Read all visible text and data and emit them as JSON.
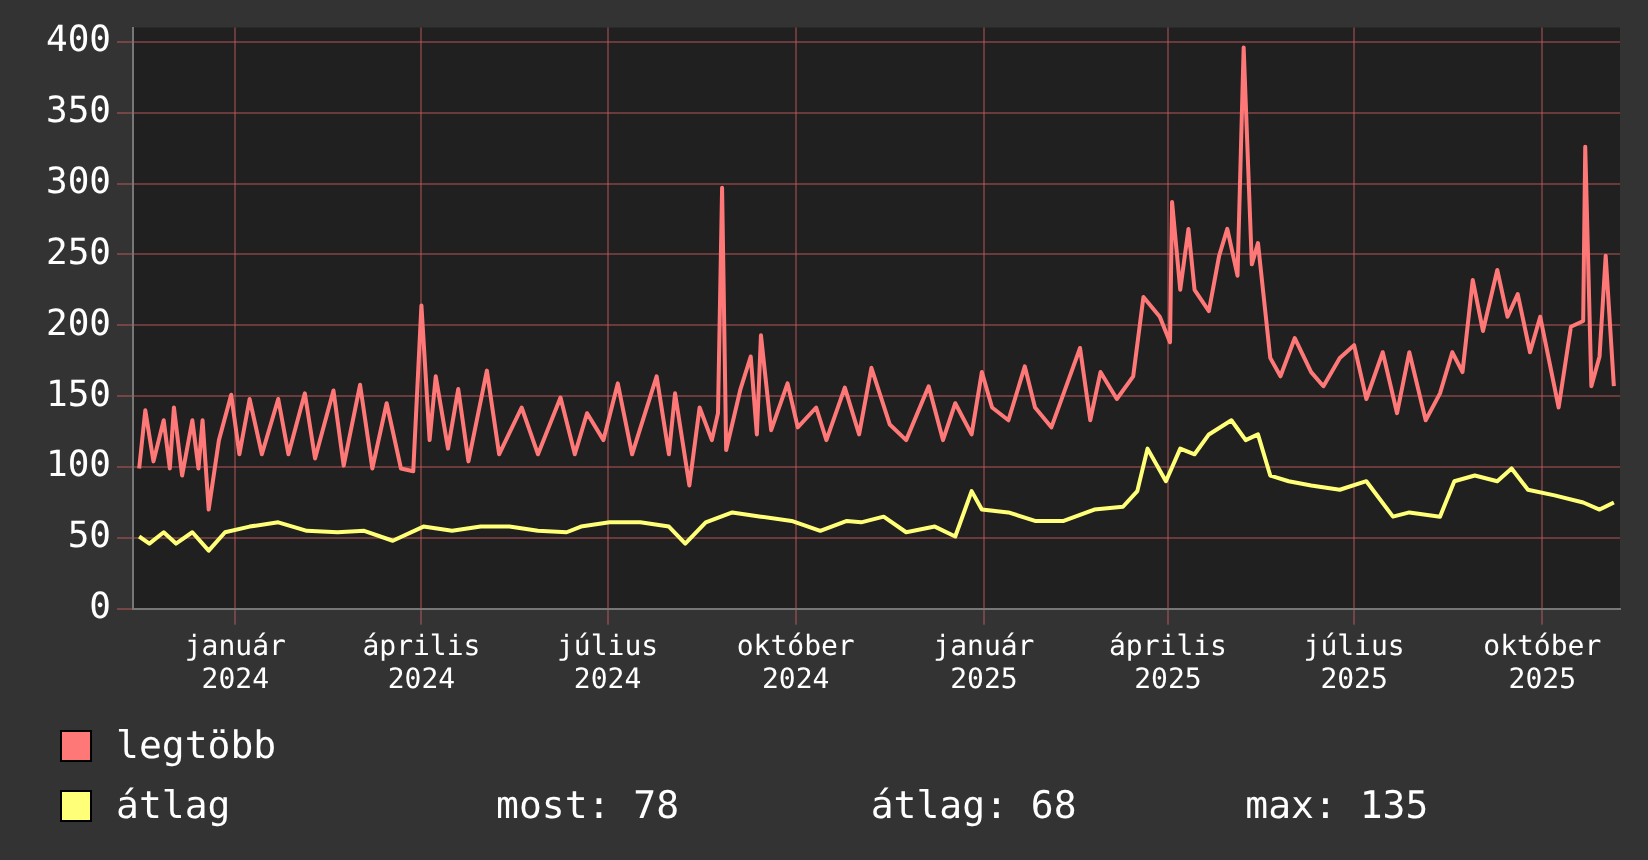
{
  "chart_data": {
    "type": "line",
    "xlim": [
      "2023-11-12",
      "2025-11-08"
    ],
    "xticks": [
      {
        "value": "2024-01-01",
        "label": "január 2024"
      },
      {
        "value": "2024-04-01",
        "label": "április 2024"
      },
      {
        "value": "2024-07-01",
        "label": "július 2024"
      },
      {
        "value": "2024-10-01",
        "label": "október 2024"
      },
      {
        "value": "2025-01-01",
        "label": "január 2025"
      },
      {
        "value": "2025-04-01",
        "label": "április 2025"
      },
      {
        "value": "2025-07-01",
        "label": "július 2025"
      },
      {
        "value": "2025-10-01",
        "label": "október 2025"
      }
    ],
    "ylim": [
      0,
      410
    ],
    "yticks": [
      0,
      50,
      100,
      150,
      200,
      250,
      300,
      350,
      400
    ],
    "grid": true,
    "legend": "bottom left",
    "marker": "none",
    "line_style": "solid",
    "annotations": [
      "most: 78",
      "átlag: 68",
      "max: 135"
    ],
    "series": [
      {
        "name": "legtöbb",
        "color": "#ff7878",
        "x": [
          "2023-11-15",
          "2023-11-18",
          "2023-11-22",
          "2023-11-27",
          "2023-11-30",
          "2023-12-02",
          "2023-12-06",
          "2023-12-11",
          "2023-12-14",
          "2023-12-16",
          "2023-12-19",
          "2023-12-24",
          "2023-12-30",
          "2024-01-03",
          "2024-01-08",
          "2024-01-14",
          "2024-01-22",
          "2024-01-27",
          "2024-02-04",
          "2024-02-09",
          "2024-02-18",
          "2024-02-23",
          "2024-03-02",
          "2024-03-08",
          "2024-03-15",
          "2024-03-22",
          "2024-03-28",
          "2024-04-01",
          "2024-04-05",
          "2024-04-08",
          "2024-04-14",
          "2024-04-19",
          "2024-04-24",
          "2024-05-03",
          "2024-05-09",
          "2024-05-20",
          "2024-05-28",
          "2024-06-08",
          "2024-06-15",
          "2024-06-21",
          "2024-06-29",
          "2024-07-06",
          "2024-07-13",
          "2024-07-25",
          "2024-07-31",
          "2024-08-03",
          "2024-08-10",
          "2024-08-15",
          "2024-08-21",
          "2024-08-24",
          "2024-08-26",
          "2024-08-28",
          "2024-09-04",
          "2024-09-09",
          "2024-09-12",
          "2024-09-14",
          "2024-09-19",
          "2024-09-27",
          "2024-10-02",
          "2024-10-11",
          "2024-10-16",
          "2024-10-25",
          "2024-11-01",
          "2024-11-07",
          "2024-11-16",
          "2024-11-24",
          "2024-12-05",
          "2024-12-12",
          "2024-12-18",
          "2024-12-26",
          "2024-12-31",
          "2025-01-05",
          "2025-01-13",
          "2025-01-21",
          "2025-01-26",
          "2025-02-03",
          "2025-02-09",
          "2025-02-17",
          "2025-02-22",
          "2025-02-27",
          "2025-03-07",
          "2025-03-15",
          "2025-03-20",
          "2025-03-28",
          "2025-04-02",
          "2025-04-03",
          "2025-04-07",
          "2025-04-11",
          "2025-04-14",
          "2025-04-21",
          "2025-04-26",
          "2025-04-30",
          "2025-05-05",
          "2025-05-08",
          "2025-05-12",
          "2025-05-15",
          "2025-05-21",
          "2025-05-26",
          "2025-06-02",
          "2025-06-10",
          "2025-06-16",
          "2025-06-24",
          "2025-07-01",
          "2025-07-07",
          "2025-07-15",
          "2025-07-22",
          "2025-07-28",
          "2025-08-05",
          "2025-08-12",
          "2025-08-18",
          "2025-08-23",
          "2025-08-28",
          "2025-09-02",
          "2025-09-09",
          "2025-09-14",
          "2025-09-19",
          "2025-09-25",
          "2025-09-30",
          "2025-10-09",
          "2025-10-15",
          "2025-10-21",
          "2025-10-22",
          "2025-10-25",
          "2025-10-29",
          "2025-11-01",
          "2025-11-05"
        ],
        "values": [
          99,
          140,
          104,
          133,
          99,
          142,
          94,
          133,
          99,
          133,
          70,
          119,
          151,
          109,
          148,
          109,
          148,
          109,
          152,
          106,
          154,
          101,
          158,
          99,
          145,
          99,
          97,
          214,
          119,
          164,
          113,
          155,
          104,
          168,
          109,
          142,
          109,
          149,
          109,
          138,
          119,
          159,
          109,
          164,
          109,
          152,
          87,
          142,
          119,
          138,
          297,
          112,
          155,
          178,
          123,
          193,
          126,
          159,
          128,
          142,
          119,
          156,
          123,
          170,
          130,
          119,
          157,
          119,
          145,
          123,
          167,
          142,
          133,
          171,
          142,
          128,
          152,
          184,
          133,
          167,
          148,
          164,
          220,
          206,
          188,
          287,
          225,
          268,
          225,
          210,
          249,
          268,
          235,
          396,
          243,
          258,
          177,
          164,
          191,
          167,
          157,
          177,
          186,
          148,
          181,
          138,
          181,
          133,
          152,
          181,
          167,
          232,
          196,
          239,
          206,
          222,
          181,
          206,
          142,
          199,
          203,
          326,
          157,
          178,
          249,
          157
        ]
      },
      {
        "name": "átlag",
        "color": "#ffff78",
        "x": [
          "2023-11-15",
          "2023-11-20",
          "2023-11-27",
          "2023-12-03",
          "2023-12-11",
          "2023-12-19",
          "2023-12-27",
          "2024-01-08",
          "2024-01-22",
          "2024-02-05",
          "2024-02-20",
          "2024-03-04",
          "2024-03-18",
          "2024-04-02",
          "2024-04-16",
          "2024-04-30",
          "2024-05-14",
          "2024-05-28",
          "2024-06-11",
          "2024-06-18",
          "2024-07-02",
          "2024-07-17",
          "2024-07-31",
          "2024-08-08",
          "2024-08-18",
          "2024-08-31",
          "2024-09-14",
          "2024-09-29",
          "2024-10-13",
          "2024-10-26",
          "2024-11-02",
          "2024-11-13",
          "2024-11-24",
          "2024-12-08",
          "2024-12-18",
          "2024-12-26",
          "2024-12-31",
          "2025-01-13",
          "2025-01-26",
          "2025-02-09",
          "2025-02-24",
          "2025-03-10",
          "2025-03-17",
          "2025-03-22",
          "2025-03-31",
          "2025-04-07",
          "2025-04-14",
          "2025-04-21",
          "2025-05-02",
          "2025-05-09",
          "2025-05-15",
          "2025-05-21",
          "2025-05-30",
          "2025-06-10",
          "2025-06-24",
          "2025-07-07",
          "2025-07-20",
          "2025-07-28",
          "2025-08-12",
          "2025-08-19",
          "2025-08-29",
          "2025-09-09",
          "2025-09-16",
          "2025-09-24",
          "2025-10-07",
          "2025-10-21",
          "2025-10-29",
          "2025-11-05"
        ],
        "values": [
          51,
          46,
          54,
          46,
          54,
          41,
          54,
          58,
          61,
          55,
          54,
          55,
          48,
          58,
          55,
          58,
          58,
          55,
          54,
          58,
          61,
          61,
          58,
          46,
          61,
          68,
          65,
          62,
          55,
          62,
          61,
          65,
          54,
          58,
          51,
          83,
          70,
          68,
          62,
          62,
          70,
          72,
          83,
          113,
          90,
          113,
          109,
          123,
          133,
          119,
          123,
          94,
          90,
          87,
          84,
          90,
          65,
          68,
          65,
          90,
          94,
          90,
          99,
          84,
          80,
          75,
          70,
          75
        ]
      }
    ]
  }
}
